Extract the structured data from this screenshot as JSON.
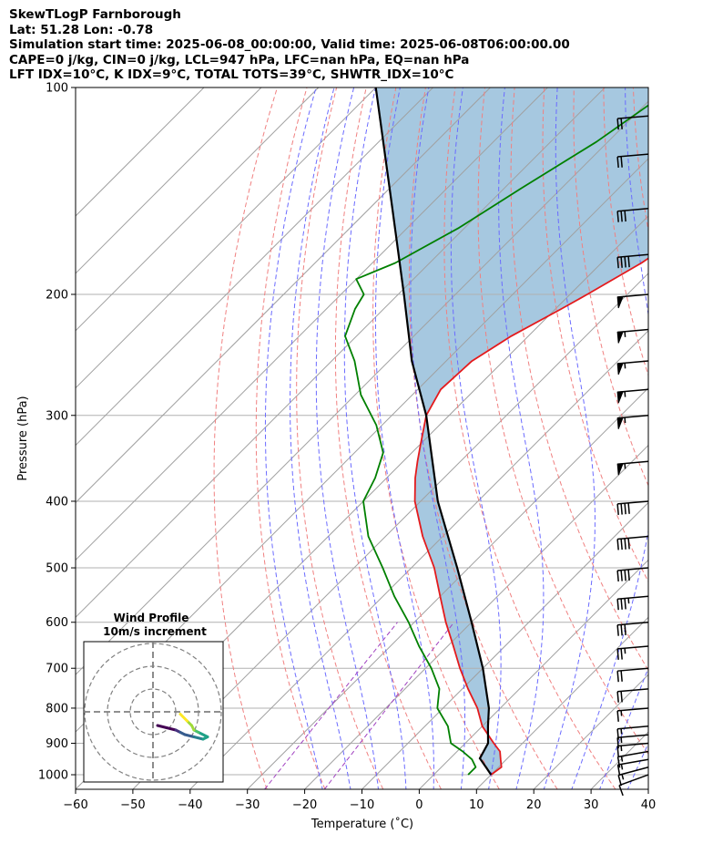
{
  "header": {
    "line1": "SkewTLogP Farnborough",
    "line2": "Lat: 51.28   Lon: -0.78",
    "line3": "Simulation start time: 2025-06-08_00:00:00, Valid time: 2025-06-08T06:00:00.00",
    "line4": "CAPE=0 j/kg, CIN=0 j/kg, LCL=947 hPa, LFC=nan hPa, EQ=nan hPa",
    "line5": "LFT IDX=10°C, K IDX=9°C, TOTAL TOTS=39°C, SHWTR_IDX=10°C"
  },
  "colors": {
    "temperature": "#e41a1c",
    "dewpoint": "#008000",
    "parcel": "#000000",
    "cape_fill": "#a6c8e0",
    "dry_adiabat": "#f08080",
    "moist_adiabat": "#6b6bff",
    "mixing_ratio": "#a040c0",
    "isotherm": "#a0a0a0"
  },
  "chart_data": {
    "type": "line",
    "title": "",
    "xlabel": "Temperature (˚C)",
    "ylabel": "Pressure (hPa)",
    "xlim": [
      -60,
      40
    ],
    "ylim": [
      1050,
      100
    ],
    "yscale": "log",
    "skew": "45deg",
    "grid": true,
    "x_ticks": [
      "−60",
      "−50",
      "−40",
      "−30",
      "−20",
      "−10",
      "0",
      "10",
      "20",
      "30",
      "40"
    ],
    "y_ticks": [
      "100",
      "200",
      "300",
      "400",
      "500",
      "600",
      "700",
      "800",
      "900",
      "1000"
    ],
    "series": [
      {
        "name": "",
        "p": [
          1000,
          975,
          950,
          925,
          900,
          850,
          800,
          750,
          700,
          650,
          600,
          550,
          500,
          450,
          400,
          370,
          350,
          330,
          300,
          275,
          250,
          230,
          210,
          200,
          180,
          160,
          140,
          120,
          110,
          100
        ],
        "t": [
          10,
          10.5,
          9,
          7.5,
          5,
          0,
          -4,
          -9,
          -14,
          -19,
          -24.5,
          -30,
          -36,
          -43.5,
          -51,
          -55,
          -57.5,
          -60,
          -64,
          -66,
          -65.5,
          -63,
          -59,
          -57,
          -53,
          -50,
          -48,
          -45,
          -43,
          -42
        ]
      },
      {
        "name": "",
        "p": [
          1000,
          975,
          950,
          925,
          900,
          850,
          800,
          750,
          700,
          650,
          600,
          550,
          500,
          450,
          400,
          370,
          340,
          310,
          280,
          250,
          230,
          210,
          200,
          190,
          180,
          160,
          140,
          120,
          100
        ],
        "t": [
          6,
          6,
          4,
          1,
          -2.5,
          -6,
          -11,
          -14,
          -19,
          -25,
          -31,
          -38,
          -45,
          -53,
          -60,
          -62,
          -65,
          -71,
          -79,
          -86,
          -92,
          -95,
          -96,
          -100,
          -96,
          -91,
          -87,
          -82,
          -78
        ]
      },
      {
        "name": "",
        "p": [
          1000,
          975,
          950,
          947,
          900,
          850,
          800,
          700,
          600,
          500,
          400,
          300,
          250,
          200,
          150,
          100
        ],
        "t": [
          10,
          7.8,
          5.5,
          5.2,
          4,
          1,
          -2,
          -10,
          -20,
          -32,
          -47,
          -64,
          -76,
          -89,
          -106,
          -130
        ]
      }
    ],
    "wind_barbs": {
      "p": [
        1000,
        975,
        950,
        925,
        900,
        875,
        850,
        800,
        750,
        700,
        650,
        600,
        550,
        500,
        450,
        400,
        350,
        300,
        275,
        250,
        225,
        200,
        175,
        150,
        125,
        110
      ],
      "speed_kt": [
        10,
        15,
        15,
        15,
        15,
        15,
        15,
        15,
        20,
        20,
        25,
        30,
        35,
        40,
        40,
        40,
        55,
        55,
        55,
        55,
        55,
        50,
        40,
        30,
        20,
        20
      ],
      "dir_deg": [
        250,
        255,
        260,
        260,
        265,
        265,
        265,
        265,
        265,
        265,
        265,
        265,
        265,
        265,
        265,
        265,
        265,
        265,
        265,
        265,
        265,
        265,
        265,
        265,
        265,
        265
      ]
    },
    "hodograph": {
      "title": "Wind Profile",
      "subtitle": "10m/s increment",
      "rings_ms": [
        10,
        20,
        30
      ],
      "u": [
        2,
        6,
        10,
        12,
        14,
        18,
        22,
        24,
        20,
        18,
        17,
        15,
        12
      ],
      "v": [
        -6,
        -7,
        -8,
        -9,
        -10,
        -11,
        -12,
        -11,
        -9,
        -8,
        -6,
        -4,
        -1
      ]
    }
  }
}
